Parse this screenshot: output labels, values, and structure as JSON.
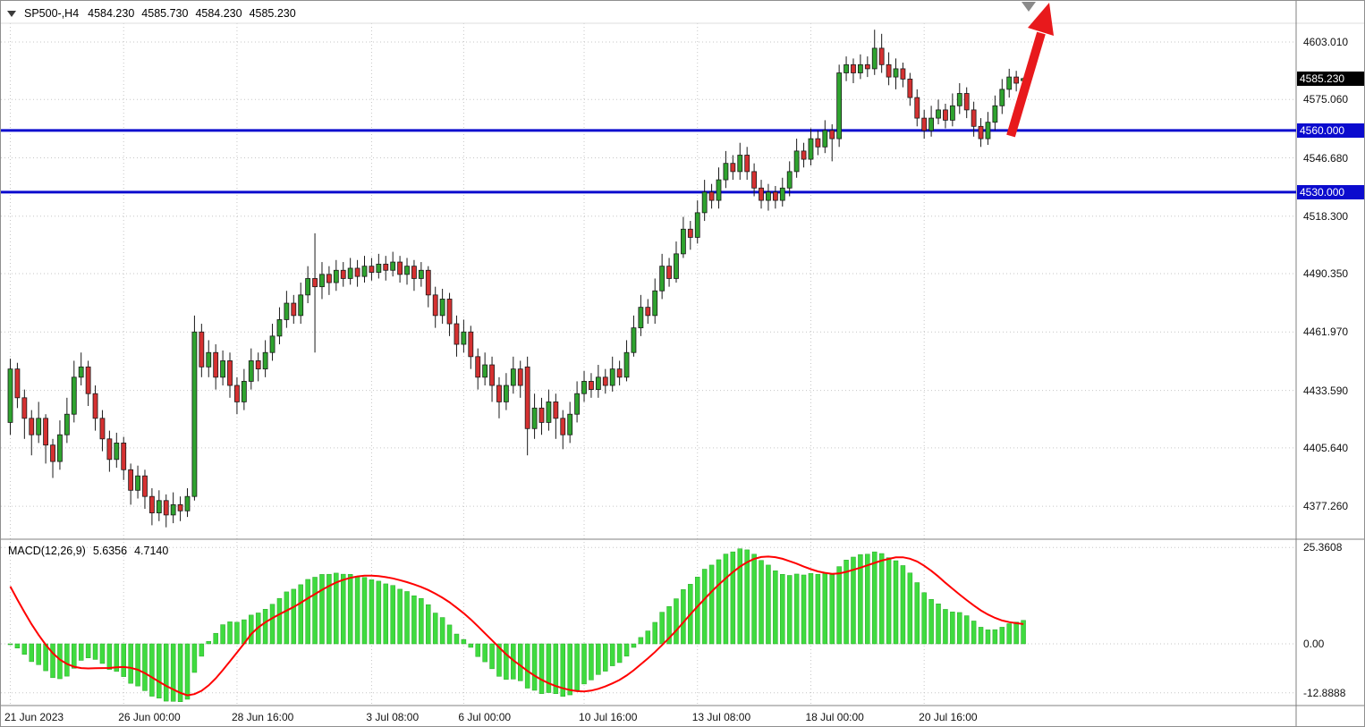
{
  "header": {
    "symbol_period": "SP500-,H4",
    "open": "4584.230",
    "high": "4585.730",
    "low": "4584.230",
    "close": "4585.230"
  },
  "price_axis": {
    "ticks": [
      {
        "label": "4603.010",
        "price": 4603.01
      },
      {
        "label": "4575.060",
        "price": 4575.06
      },
      {
        "label": "4546.680",
        "price": 4546.68
      },
      {
        "label": "4518.300",
        "price": 4518.3
      },
      {
        "label": "4490.350",
        "price": 4490.35
      },
      {
        "label": "4461.970",
        "price": 4461.97
      },
      {
        "label": "4433.590",
        "price": 4433.59
      },
      {
        "label": "4405.640",
        "price": 4405.64
      },
      {
        "label": "4377.260",
        "price": 4377.26
      }
    ],
    "current_badge": {
      "label": "4585.230",
      "price": 4585.23
    },
    "level_badges": [
      {
        "label": "4560.000",
        "price": 4560.0
      },
      {
        "label": "4530.000",
        "price": 4530.0
      }
    ]
  },
  "macd_axis": {
    "ticks": [
      {
        "label": "25.3608",
        "value": 25.3608
      },
      {
        "label": "0.00",
        "value": 0
      },
      {
        "label": "-12.8888",
        "value": -12.8888
      }
    ]
  },
  "time_axis": {
    "ticks": [
      {
        "label": "21 Jun 2023",
        "index": 0
      },
      {
        "label": "26 Jun 00:00",
        "index": 16
      },
      {
        "label": "28 Jun 16:00",
        "index": 32
      },
      {
        "label": "3 Jul 08:00",
        "index": 51
      },
      {
        "label": "6 Jul 00:00",
        "index": 64
      },
      {
        "label": "10 Jul 16:00",
        "index": 81
      },
      {
        "label": "13 Jul 08:00",
        "index": 97
      },
      {
        "label": "18 Jul 00:00",
        "index": 113
      },
      {
        "label": "20 Jul 16:00",
        "index": 129
      }
    ]
  },
  "chart_data": {
    "type": "candlestick",
    "symbol": "SP500-",
    "timeframe": "H4",
    "price_ylim": [
      4362,
      4612
    ],
    "horizontal_levels": [
      4560.0,
      4530.0
    ],
    "current_price": 4585.23,
    "indicator": {
      "type": "macd_panel",
      "label": "MACD(12,26,9)",
      "fast": 12,
      "slow": 26,
      "signal_period": 9,
      "macd_value": "5.6356",
      "signal_value": "4.7140",
      "ylim": [
        -15.5,
        26.4
      ]
    },
    "annotations": [
      {
        "type": "trend-arrow",
        "direction": "up",
        "color": "#e8191c"
      }
    ],
    "candles": [
      [
        4418,
        4449,
        4412,
        4444
      ],
      [
        4444,
        4447,
        4425,
        4430
      ],
      [
        4430,
        4434,
        4410,
        4420
      ],
      [
        4420,
        4424,
        4402,
        4412
      ],
      [
        4412,
        4428,
        4408,
        4420
      ],
      [
        4420,
        4422,
        4398,
        4407
      ],
      [
        4407,
        4410,
        4391,
        4399
      ],
      [
        4399,
        4419,
        4395,
        4412
      ],
      [
        4412,
        4430,
        4408,
        4422
      ],
      [
        4422,
        4448,
        4418,
        4440
      ],
      [
        4440,
        4452,
        4436,
        4445
      ],
      [
        4445,
        4448,
        4426,
        4432
      ],
      [
        4432,
        4436,
        4414,
        4420
      ],
      [
        4420,
        4424,
        4404,
        4410
      ],
      [
        4410,
        4414,
        4394,
        4400
      ],
      [
        4400,
        4413,
        4396,
        4408
      ],
      [
        4408,
        4411,
        4390,
        4395
      ],
      [
        4395,
        4398,
        4378,
        4385
      ],
      [
        4385,
        4397,
        4381,
        4392
      ],
      [
        4392,
        4395,
        4376,
        4382
      ],
      [
        4382,
        4386,
        4368,
        4374
      ],
      [
        4374,
        4385,
        4370,
        4380
      ],
      [
        4380,
        4383,
        4367,
        4373
      ],
      [
        4373,
        4384,
        4369,
        4378
      ],
      [
        4378,
        4382,
        4370,
        4375
      ],
      [
        4375,
        4386,
        4372,
        4382
      ],
      [
        4382,
        4470,
        4380,
        4462
      ],
      [
        4462,
        4466,
        4440,
        4445
      ],
      [
        4445,
        4458,
        4440,
        4452
      ],
      [
        4452,
        4456,
        4434,
        4440
      ],
      [
        4440,
        4453,
        4436,
        4448
      ],
      [
        4448,
        4452,
        4430,
        4436
      ],
      [
        4436,
        4440,
        4422,
        4428
      ],
      [
        4428,
        4444,
        4424,
        4438
      ],
      [
        4438,
        4454,
        4434,
        4448
      ],
      [
        4448,
        4452,
        4438,
        4444
      ],
      [
        4444,
        4458,
        4440,
        4452
      ],
      [
        4452,
        4466,
        4448,
        4460
      ],
      [
        4460,
        4474,
        4456,
        4468
      ],
      [
        4468,
        4482,
        4464,
        4476
      ],
      [
        4476,
        4480,
        4466,
        4470
      ],
      [
        4470,
        4486,
        4466,
        4480
      ],
      [
        4480,
        4494,
        4476,
        4488
      ],
      [
        4488,
        4510,
        4452,
        4484
      ],
      [
        4484,
        4496,
        4478,
        4490
      ],
      [
        4490,
        4494,
        4480,
        4486
      ],
      [
        4486,
        4497,
        4482,
        4492
      ],
      [
        4492,
        4496,
        4484,
        4488
      ],
      [
        4488,
        4498,
        4485,
        4493
      ],
      [
        4493,
        4497,
        4484,
        4489
      ],
      [
        4489,
        4499,
        4486,
        4494
      ],
      [
        4494,
        4498,
        4487,
        4491
      ],
      [
        4491,
        4500,
        4488,
        4495
      ],
      [
        4495,
        4499,
        4487,
        4492
      ],
      [
        4492,
        4501,
        4489,
        4496
      ],
      [
        4496,
        4499,
        4486,
        4490
      ],
      [
        4490,
        4498,
        4485,
        4494
      ],
      [
        4494,
        4497,
        4482,
        4488
      ],
      [
        4488,
        4496,
        4484,
        4492
      ],
      [
        4492,
        4494,
        4474,
        4480
      ],
      [
        4480,
        4484,
        4464,
        4470
      ],
      [
        4470,
        4483,
        4466,
        4478
      ],
      [
        4478,
        4481,
        4460,
        4466
      ],
      [
        4466,
        4470,
        4450,
        4456
      ],
      [
        4456,
        4468,
        4452,
        4462
      ],
      [
        4462,
        4465,
        4444,
        4450
      ],
      [
        4450,
        4454,
        4434,
        4440
      ],
      [
        4440,
        4452,
        4436,
        4446
      ],
      [
        4446,
        4450,
        4428,
        4436
      ],
      [
        4436,
        4440,
        4420,
        4428
      ],
      [
        4428,
        4442,
        4424,
        4436
      ],
      [
        4436,
        4450,
        4432,
        4444
      ],
      [
        4444,
        4448,
        4430,
        4436
      ],
      [
        4445,
        4450,
        4402,
        4415
      ],
      [
        4415,
        4432,
        4410,
        4425
      ],
      [
        4425,
        4430,
        4412,
        4418
      ],
      [
        4418,
        4434,
        4414,
        4428
      ],
      [
        4428,
        4432,
        4410,
        4420
      ],
      [
        4420,
        4424,
        4405,
        4412
      ],
      [
        4412,
        4428,
        4408,
        4422
      ],
      [
        4422,
        4438,
        4418,
        4432
      ],
      [
        4432,
        4443,
        4428,
        4438
      ],
      [
        4438,
        4442,
        4430,
        4434
      ],
      [
        4434,
        4446,
        4430,
        4440
      ],
      [
        4440,
        4444,
        4432,
        4436
      ],
      [
        4436,
        4450,
        4433,
        4444
      ],
      [
        4444,
        4448,
        4436,
        4440
      ],
      [
        4440,
        4458,
        4438,
        4452
      ],
      [
        4452,
        4470,
        4450,
        4464
      ],
      [
        4464,
        4480,
        4460,
        4474
      ],
      [
        4474,
        4478,
        4466,
        4470
      ],
      [
        4470,
        4488,
        4466,
        4482
      ],
      [
        4482,
        4500,
        4478,
        4494
      ],
      [
        4494,
        4498,
        4484,
        4488
      ],
      [
        4488,
        4506,
        4486,
        4500
      ],
      [
        4500,
        4518,
        4498,
        4512
      ],
      [
        4512,
        4516,
        4502,
        4508
      ],
      [
        4508,
        4526,
        4505,
        4520
      ],
      [
        4520,
        4536,
        4516,
        4530
      ],
      [
        4530,
        4534,
        4522,
        4526
      ],
      [
        4526,
        4542,
        4522,
        4536
      ],
      [
        4536,
        4550,
        4532,
        4544
      ],
      [
        4544,
        4548,
        4536,
        4540
      ],
      [
        4540,
        4554,
        4536,
        4548
      ],
      [
        4548,
        4552,
        4536,
        4540
      ],
      [
        4540,
        4544,
        4528,
        4532
      ],
      [
        4532,
        4536,
        4522,
        4526
      ],
      [
        4526,
        4534,
        4521,
        4530
      ],
      [
        4530,
        4533,
        4522,
        4526
      ],
      [
        4526,
        4537,
        4523,
        4532
      ],
      [
        4532,
        4545,
        4528,
        4540
      ],
      [
        4540,
        4556,
        4537,
        4550
      ],
      [
        4550,
        4554,
        4542,
        4546
      ],
      [
        4546,
        4561,
        4543,
        4556
      ],
      [
        4556,
        4560,
        4548,
        4552
      ],
      [
        4552,
        4565,
        4549,
        4560
      ],
      [
        4560,
        4563,
        4545,
        4556
      ],
      [
        4556,
        4592,
        4552,
        4588
      ],
      [
        4588,
        4596,
        4584,
        4592
      ],
      [
        4592,
        4595,
        4583,
        4588
      ],
      [
        4588,
        4597,
        4585,
        4592
      ],
      [
        4592,
        4596,
        4586,
        4590
      ],
      [
        4590,
        4609,
        4587,
        4600
      ],
      [
        4600,
        4607,
        4588,
        4592
      ],
      [
        4592,
        4598,
        4582,
        4586
      ],
      [
        4586,
        4595,
        4580,
        4590
      ],
      [
        4590,
        4593,
        4581,
        4585
      ],
      [
        4585,
        4588,
        4572,
        4576
      ],
      [
        4576,
        4580,
        4562,
        4566
      ],
      [
        4566,
        4570,
        4556,
        4560
      ],
      [
        4560,
        4572,
        4557,
        4566
      ],
      [
        4566,
        4575,
        4563,
        4570
      ],
      [
        4570,
        4573,
        4561,
        4565
      ],
      [
        4565,
        4578,
        4562,
        4572
      ],
      [
        4572,
        4583,
        4568,
        4578
      ],
      [
        4578,
        4581,
        4566,
        4570
      ],
      [
        4570,
        4574,
        4557,
        4562
      ],
      [
        4562,
        4566,
        4552,
        4556
      ],
      [
        4556,
        4569,
        4553,
        4564
      ],
      [
        4564,
        4577,
        4560,
        4572
      ],
      [
        4572,
        4585,
        4568,
        4580
      ],
      [
        4580,
        4590,
        4576,
        4586
      ],
      [
        4586,
        4589,
        4579,
        4583
      ],
      [
        4584.23,
        4585.73,
        4584.23,
        4585.23
      ]
    ]
  },
  "colors": {
    "bull": "#2fa32f",
    "bear": "#d53131",
    "outline": "#1a1a1a",
    "macd_bar": "#3fdb3f",
    "macd_bar_edge": "#27a827",
    "signal": "#ff0000",
    "level_blue": "#0b0bce",
    "badge_current_bg": "#000000",
    "badge_level_bg": "#0b0bce",
    "arrow": "#e8191c",
    "grid": "#c6c6c6",
    "divider": "#808080",
    "marker_gray": "#8a8a8a"
  }
}
